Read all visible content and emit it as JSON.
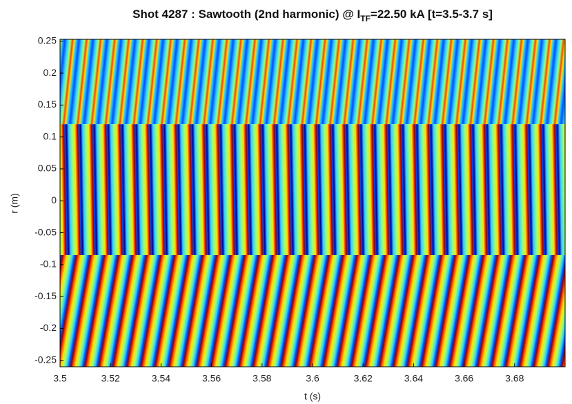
{
  "chart_data": {
    "type": "heatmap",
    "title": {
      "main": "Shot 4287 : Sawtooth (2nd harmonic) @ I",
      "sub": "TF",
      "rest": "=22.50 kA [t=3.5-3.7 s]"
    },
    "xlabel": "t (s)",
    "ylabel": "r (m)",
    "xlim": [
      3.5,
      3.7
    ],
    "ylim": [
      -0.26,
      0.253
    ],
    "xticks": [
      3.5,
      3.52,
      3.54,
      3.56,
      3.58,
      3.6,
      3.62,
      3.64,
      3.66,
      3.68
    ],
    "yticks": [
      0.25,
      0.2,
      0.15,
      0.1,
      0.05,
      0,
      -0.05,
      -0.1,
      -0.15,
      -0.2,
      -0.25
    ],
    "colormap": [
      "#00008f",
      "#0050ff",
      "#30d0ff",
      "#a0ff70",
      "#ffe000",
      "#ff4000",
      "#900000"
    ]
  }
}
